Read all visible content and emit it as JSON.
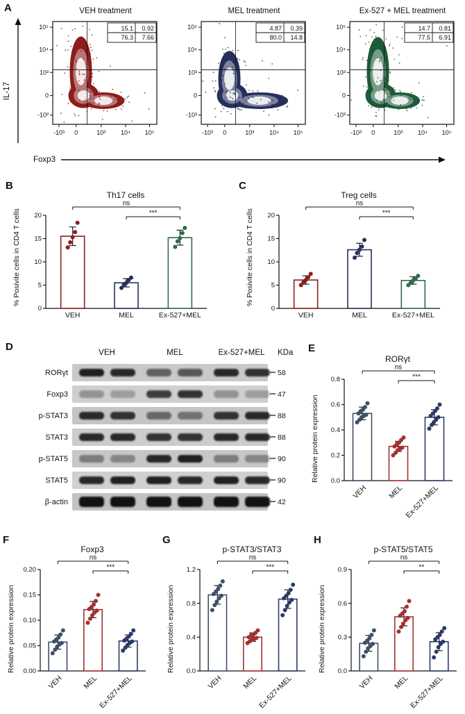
{
  "panels": {
    "a": "A",
    "b": "B",
    "c": "C",
    "d": "D",
    "e": "E",
    "f": "F",
    "g": "G",
    "h": "H"
  },
  "flow": {
    "ylabel": "IL-17",
    "xlabel": "Foxp3",
    "xticks": [
      "-10³",
      "0",
      "10³",
      "10⁴",
      "10⁵"
    ],
    "yticks_top_to_bottom": [
      "10⁵",
      "10⁴",
      "10³",
      "0",
      "-10³"
    ],
    "plots": [
      {
        "title": "VEH treatment",
        "color": "#8b1d1d",
        "quadrants": {
          "top_left": "15.1",
          "top_right": "0.92",
          "bottom_left": "76.3",
          "bottom_right": "7.66"
        }
      },
      {
        "title": "MEL treatment",
        "color": "#252f5c",
        "quadrants": {
          "top_left": "4.87",
          "top_right": "0.39",
          "bottom_left": "80.0",
          "bottom_right": "14.8"
        }
      },
      {
        "title": "Ex-527 + MEL treatment",
        "color": "#1c5a38",
        "quadrants": {
          "top_left": "14.7",
          "top_right": "0.81",
          "bottom_left": "77.5",
          "bottom_right": "6.91"
        }
      }
    ]
  },
  "blot": {
    "columns": [
      "VEH",
      "MEL",
      "Ex-527+MEL"
    ],
    "kda_header": "KDa",
    "rows": [
      {
        "label": "RORγt",
        "kda": "58",
        "bands": [
          0.9,
          0.85,
          0.55,
          0.6,
          0.85,
          0.8
        ]
      },
      {
        "label": "Foxp3",
        "kda": "47",
        "bands": [
          0.3,
          0.25,
          0.75,
          0.8,
          0.3,
          0.25
        ]
      },
      {
        "label": "p-STAT3",
        "kda": "88",
        "bands": [
          0.85,
          0.8,
          0.5,
          0.45,
          0.8,
          0.85
        ]
      },
      {
        "label": "STAT3",
        "kda": "88",
        "bands": [
          0.85,
          0.85,
          0.8,
          0.8,
          0.85,
          0.85
        ]
      },
      {
        "label": "p-STAT5",
        "kda": "90",
        "bands": [
          0.4,
          0.35,
          0.85,
          0.9,
          0.4,
          0.35
        ]
      },
      {
        "label": "STAT5",
        "kda": "90",
        "bands": [
          0.85,
          0.9,
          0.9,
          0.85,
          0.9,
          0.85
        ]
      },
      {
        "label": "β-actin",
        "kda": "42",
        "bands": [
          0.97,
          0.97,
          0.97,
          0.97,
          0.97,
          0.97
        ]
      }
    ]
  },
  "chart_data": [
    {
      "panel": "B",
      "type": "bar",
      "title": "Th17 cells",
      "ylabel": "% Posivite cells in CD4 T cells",
      "categories": [
        "VEH",
        "MEL",
        "Ex-527+MEL"
      ],
      "values": [
        15.5,
        5.5,
        15.2
      ],
      "errors": [
        2.0,
        0.9,
        1.6
      ],
      "points": [
        [
          13.1,
          14.2,
          15.3,
          16.4,
          18.4
        ],
        [
          4.4,
          5.1,
          5.5,
          6.1,
          6.6
        ],
        [
          13.2,
          14.4,
          15.1,
          16.2,
          17.3
        ]
      ],
      "ylim": [
        0,
        20
      ],
      "yticks": [
        "0",
        "5",
        "10",
        "15",
        "20"
      ],
      "colors": [
        "#8b1d1d",
        "#252f5c",
        "#2f6b4a"
      ],
      "sig": [
        {
          "from": 0,
          "to": 2,
          "label": "ns"
        },
        {
          "from": 1,
          "to": 2,
          "label": "***"
        }
      ],
      "rotate_xticks": false
    },
    {
      "panel": "C",
      "type": "bar",
      "title": "Treg cells",
      "ylabel": "% Posivite cells in CD4 T cells",
      "categories": [
        "VEH",
        "MEL",
        "Ex-527+MEL"
      ],
      "values": [
        6.1,
        12.6,
        6.0
      ],
      "errors": [
        0.9,
        1.4,
        0.8
      ],
      "points": [
        [
          5.0,
          5.6,
          6.1,
          6.7,
          7.4
        ],
        [
          10.9,
          11.9,
          12.6,
          13.3,
          14.7
        ],
        [
          5.0,
          5.5,
          6.0,
          6.4,
          7.0
        ]
      ],
      "ylim": [
        0,
        20
      ],
      "yticks": [
        "0",
        "5",
        "10",
        "15",
        "20"
      ],
      "colors": [
        "#8b1d1d",
        "#252f5c",
        "#2f6b4a"
      ],
      "sig": [
        {
          "from": 0,
          "to": 2,
          "label": "ns"
        },
        {
          "from": 1,
          "to": 2,
          "label": "***"
        }
      ],
      "rotate_xticks": false
    },
    {
      "panel": "E",
      "type": "bar",
      "title": "RORγt",
      "ylabel": "Relative protein expression",
      "categories": [
        "VEH",
        "MEL",
        "Ex-527+MEL"
      ],
      "values": [
        0.53,
        0.27,
        0.5
      ],
      "errors": [
        0.05,
        0.04,
        0.06
      ],
      "points": [
        [
          0.46,
          0.48,
          0.5,
          0.51,
          0.52,
          0.53,
          0.55,
          0.56,
          0.58,
          0.61
        ],
        [
          0.2,
          0.22,
          0.24,
          0.25,
          0.26,
          0.27,
          0.29,
          0.3,
          0.32,
          0.34
        ],
        [
          0.41,
          0.44,
          0.46,
          0.48,
          0.5,
          0.51,
          0.53,
          0.55,
          0.57,
          0.6
        ]
      ],
      "ylim": [
        0,
        0.8
      ],
      "yticks": [
        "0.0",
        "0.2",
        "0.4",
        "0.6",
        "0.8"
      ],
      "colors": [
        "#3f4f66",
        "#a33030",
        "#2b3a68"
      ],
      "sig": [
        {
          "from": 0,
          "to": 2,
          "label": "ns"
        },
        {
          "from": 1,
          "to": 2,
          "label": "***"
        }
      ],
      "rotate_xticks": true
    },
    {
      "panel": "F",
      "type": "bar",
      "title": "Foxp3",
      "ylabel": "Relative protein expression",
      "categories": [
        "VEH",
        "MEL",
        "Ex-527+MEL"
      ],
      "values": [
        0.057,
        0.121,
        0.059
      ],
      "errors": [
        0.014,
        0.016,
        0.012
      ],
      "points": [
        [
          0.035,
          0.042,
          0.048,
          0.052,
          0.055,
          0.058,
          0.062,
          0.066,
          0.072,
          0.08
        ],
        [
          0.095,
          0.103,
          0.11,
          0.115,
          0.119,
          0.122,
          0.126,
          0.131,
          0.138,
          0.15
        ],
        [
          0.04,
          0.046,
          0.051,
          0.055,
          0.058,
          0.06,
          0.064,
          0.068,
          0.073,
          0.08
        ]
      ],
      "ylim": [
        0,
        0.2
      ],
      "yticks": [
        "0.00",
        "0.05",
        "0.10",
        "0.15",
        "0.20"
      ],
      "colors": [
        "#3f4f66",
        "#a33030",
        "#2b3a68"
      ],
      "sig": [
        {
          "from": 0,
          "to": 2,
          "label": "ns"
        },
        {
          "from": 1,
          "to": 2,
          "label": "***"
        }
      ],
      "rotate_xticks": true
    },
    {
      "panel": "G",
      "type": "bar",
      "title": "p-STAT3/STAT3",
      "ylabel": "Relative protein expression",
      "categories": [
        "VEH",
        "MEL",
        "Ex-527+MEL"
      ],
      "values": [
        0.9,
        0.4,
        0.85
      ],
      "errors": [
        0.11,
        0.05,
        0.11
      ],
      "points": [
        [
          0.72,
          0.78,
          0.82,
          0.86,
          0.89,
          0.91,
          0.94,
          0.97,
          1.01,
          1.06
        ],
        [
          0.33,
          0.35,
          0.37,
          0.38,
          0.39,
          0.4,
          0.42,
          0.43,
          0.45,
          0.48
        ],
        [
          0.66,
          0.72,
          0.77,
          0.81,
          0.84,
          0.86,
          0.89,
          0.92,
          0.96,
          1.02
        ]
      ],
      "ylim": [
        0,
        1.2
      ],
      "yticks": [
        "0.0",
        "0.4",
        "0.8",
        "1.2"
      ],
      "colors": [
        "#3f4f66",
        "#a33030",
        "#2b3a68"
      ],
      "sig": [
        {
          "from": 0,
          "to": 2,
          "label": "ns"
        },
        {
          "from": 1,
          "to": 2,
          "label": "***"
        }
      ],
      "rotate_xticks": true
    },
    {
      "panel": "H",
      "type": "bar",
      "title": "p-STAT5/STAT5",
      "ylabel": "Relative protein expression",
      "categories": [
        "VEH",
        "MEL",
        "Ex-527+MEL"
      ],
      "values": [
        0.245,
        0.48,
        0.26
      ],
      "errors": [
        0.07,
        0.08,
        0.08
      ],
      "points": [
        [
          0.13,
          0.17,
          0.2,
          0.22,
          0.24,
          0.25,
          0.27,
          0.29,
          0.32,
          0.36
        ],
        [
          0.35,
          0.39,
          0.42,
          0.45,
          0.47,
          0.49,
          0.51,
          0.53,
          0.57,
          0.62
        ],
        [
          0.12,
          0.17,
          0.21,
          0.24,
          0.26,
          0.28,
          0.3,
          0.32,
          0.35,
          0.38
        ]
      ],
      "ylim": [
        0,
        0.9
      ],
      "yticks": [
        "0.0",
        "0.3",
        "0.6",
        "0.9"
      ],
      "colors": [
        "#3f4f66",
        "#a33030",
        "#2b3a68"
      ],
      "sig": [
        {
          "from": 0,
          "to": 2,
          "label": "ns"
        },
        {
          "from": 1,
          "to": 2,
          "label": "**"
        }
      ],
      "rotate_xticks": true
    }
  ]
}
